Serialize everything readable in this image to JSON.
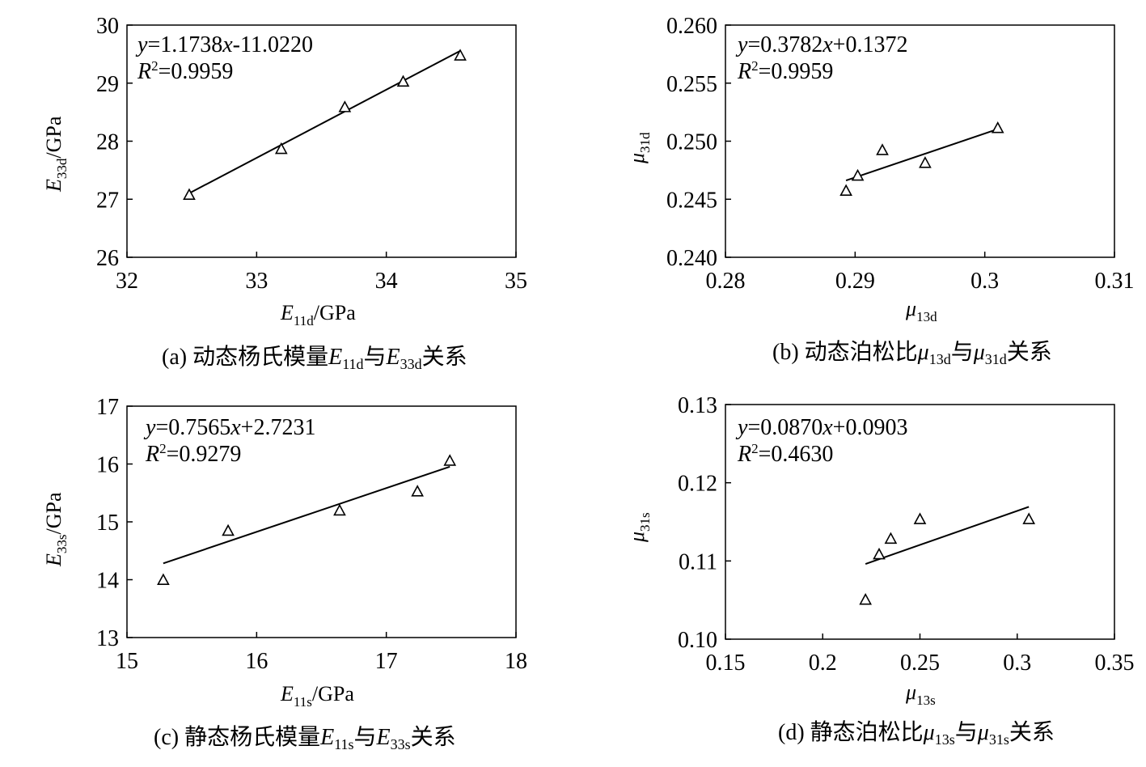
{
  "chart_data": [
    {
      "type": "scatter",
      "x": [
        32.48,
        33.19,
        33.68,
        34.13,
        34.57
      ],
      "y": [
        27.07,
        27.86,
        28.58,
        29.02,
        29.47
      ],
      "xlim": [
        32,
        35
      ],
      "ylim": [
        26,
        30
      ],
      "xticks": [
        "32",
        "33",
        "34",
        "35"
      ],
      "yticks": [
        "26",
        "27",
        "28",
        "29",
        "30"
      ],
      "xlabel": {
        "main": "E",
        "sub": "11d",
        "unit": "/GPa"
      },
      "ylabel": {
        "main": "E",
        "sub": "33d",
        "unit": "/GPa"
      },
      "fit": {
        "slope": 1.1738,
        "intercept": -11.022,
        "x_range": [
          32.48,
          34.57
        ]
      },
      "equation": {
        "y": "y",
        "eq": "=1.1738",
        "x": "x",
        "rest": "-11.0220"
      },
      "r2": {
        "r": "R",
        "sup": "2",
        "rest": "=0.9959"
      },
      "caption": {
        "pre": "(a) 动态杨氏模量",
        "v1": "E",
        "s1": "11d",
        "mid": "与",
        "v2": "E",
        "s2": "33d",
        "post": "关系"
      }
    },
    {
      "type": "scatter",
      "x": [
        0.2893,
        0.2902,
        0.2921,
        0.2954,
        0.301
      ],
      "y": [
        0.2457,
        0.247,
        0.2492,
        0.2481,
        0.2511
      ],
      "xlim": [
        0.28,
        0.31
      ],
      "ylim": [
        0.24,
        0.26
      ],
      "xticks": [
        "0.28",
        "0.29",
        "0.3",
        "0.31"
      ],
      "yticks": [
        "0.240",
        "0.245",
        "0.250",
        "0.255",
        "0.260"
      ],
      "xlabel": {
        "main": "μ",
        "sub": "13d",
        "unit": ""
      },
      "ylabel": {
        "main": "μ",
        "sub": "31d",
        "unit": ""
      },
      "fit": {
        "slope": 0.3782,
        "intercept": 0.1372,
        "x_range": [
          0.2893,
          0.301
        ]
      },
      "equation": {
        "y": "y",
        "eq": "=0.3782",
        "x": "x",
        "rest": "+0.1372"
      },
      "r2": {
        "r": "R",
        "sup": "2",
        "rest": "=0.9959"
      },
      "caption": {
        "pre": "(b) 动态泊松比",
        "v1": "μ",
        "s1": "13d",
        "mid": "与",
        "v2": "μ",
        "s2": "31d",
        "post": "关系"
      }
    },
    {
      "type": "scatter",
      "x": [
        15.28,
        15.78,
        16.64,
        17.24,
        17.49
      ],
      "y": [
        13.99,
        14.84,
        15.19,
        15.52,
        16.05
      ],
      "xlim": [
        15,
        18
      ],
      "ylim": [
        13,
        17
      ],
      "xticks": [
        "15",
        "16",
        "17",
        "18"
      ],
      "yticks": [
        "13",
        "14",
        "15",
        "16",
        "17"
      ],
      "xlabel": {
        "main": "E",
        "sub": "11s",
        "unit": "/GPa"
      },
      "ylabel": {
        "main": "E",
        "sub": "33s",
        "unit": "/GPa"
      },
      "fit": {
        "slope": 0.7565,
        "intercept": 2.7231,
        "x_range": [
          15.28,
          17.49
        ]
      },
      "equation": {
        "y": "y",
        "eq": "=0.7565",
        "x": "x",
        "rest": "+2.7231"
      },
      "r2": {
        "r": "R",
        "sup": "2",
        "rest": "=0.9279"
      },
      "caption": {
        "pre": "(c) 静态杨氏模量",
        "v1": "E",
        "s1": "11s",
        "mid": "与",
        "v2": "E",
        "s2": "33s",
        "post": "关系"
      }
    },
    {
      "type": "scatter",
      "x": [
        0.222,
        0.229,
        0.235,
        0.25,
        0.306
      ],
      "y": [
        0.105,
        0.1108,
        0.1128,
        0.1153,
        0.1153
      ],
      "xlim": [
        0.15,
        0.35
      ],
      "ylim": [
        0.1,
        0.13
      ],
      "xticks": [
        "0.15",
        "0.2",
        "0.25",
        "0.3",
        "0.35"
      ],
      "yticks": [
        "0.10",
        "0.11",
        "0.12",
        "0.13"
      ],
      "xlabel": {
        "main": "μ",
        "sub": "13s",
        "unit": ""
      },
      "ylabel": {
        "main": "μ",
        "sub": "31s",
        "unit": ""
      },
      "fit": {
        "slope": 0.087,
        "intercept": 0.0903,
        "x_range": [
          0.222,
          0.306
        ]
      },
      "equation": {
        "y": "y",
        "eq": "=0.0870",
        "x": "x",
        "rest": "+0.0903"
      },
      "r2": {
        "r": "R",
        "sup": "2",
        "rest": "=0.4630"
      },
      "caption": {
        "pre": "(d) 静态泊松比",
        "v1": "μ",
        "s1": "13s",
        "mid": "与",
        "v2": "μ",
        "s2": "31s",
        "post": "关系"
      }
    }
  ]
}
